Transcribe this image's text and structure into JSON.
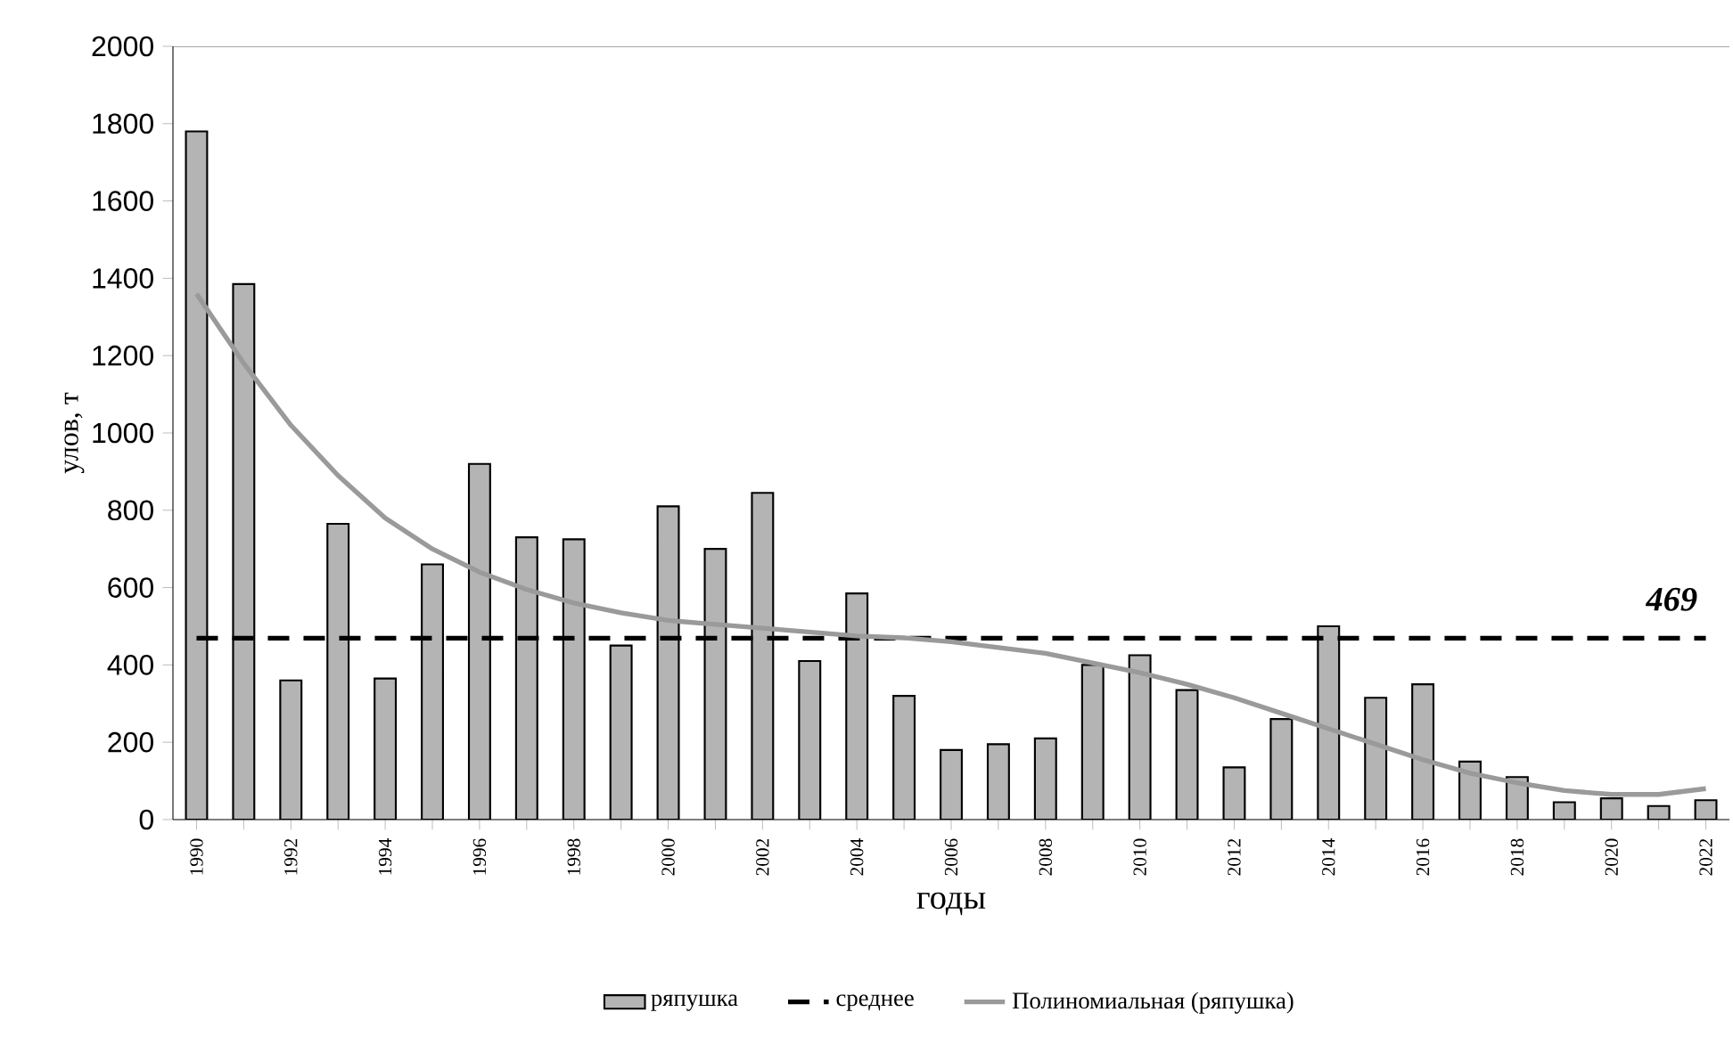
{
  "chart_data": {
    "type": "bar",
    "xlabel": "годы",
    "ylabel": "улов, т",
    "categories": [
      "1990",
      null,
      "1992",
      null,
      "1994",
      null,
      "1996",
      null,
      "1998",
      null,
      "2000",
      null,
      "2002",
      null,
      "2004",
      null,
      "2006",
      null,
      "2008",
      null,
      "2010",
      null,
      "2012",
      null,
      "2014",
      null,
      "2016",
      null,
      "2018",
      null,
      "2020",
      null,
      "2022"
    ],
    "series": [
      {
        "name": "ряпушка",
        "color": "#b4b4b4",
        "values": [
          1780,
          1385,
          360,
          765,
          365,
          660,
          920,
          730,
          725,
          450,
          810,
          700,
          845,
          410,
          585,
          320,
          180,
          195,
          210,
          400,
          425,
          335,
          135,
          260,
          500,
          315,
          350,
          150,
          110,
          45,
          55,
          35,
          50
        ]
      },
      {
        "name": "Полиномиальная (ряпушка)",
        "type": "line",
        "line_style": "solid",
        "color": "#9a9a9a",
        "values": [
          1360,
          1180,
          1020,
          890,
          780,
          700,
          640,
          595,
          560,
          535,
          515,
          505,
          495,
          485,
          475,
          470,
          460,
          445,
          430,
          405,
          380,
          350,
          315,
          275,
          235,
          195,
          155,
          120,
          95,
          75,
          65,
          65,
          80
        ]
      }
    ],
    "ref_lines": [
      {
        "axis": "y",
        "value": 469,
        "label": "среднее",
        "line_style": "dashed",
        "color": "#000000"
      }
    ],
    "annotations": [
      "469"
    ],
    "ylim": [
      0,
      2000
    ],
    "yticks": [
      0,
      200,
      400,
      600,
      800,
      1000,
      1200,
      1400,
      1600,
      1800,
      2000
    ],
    "legend": "bottom",
    "grid": false
  }
}
